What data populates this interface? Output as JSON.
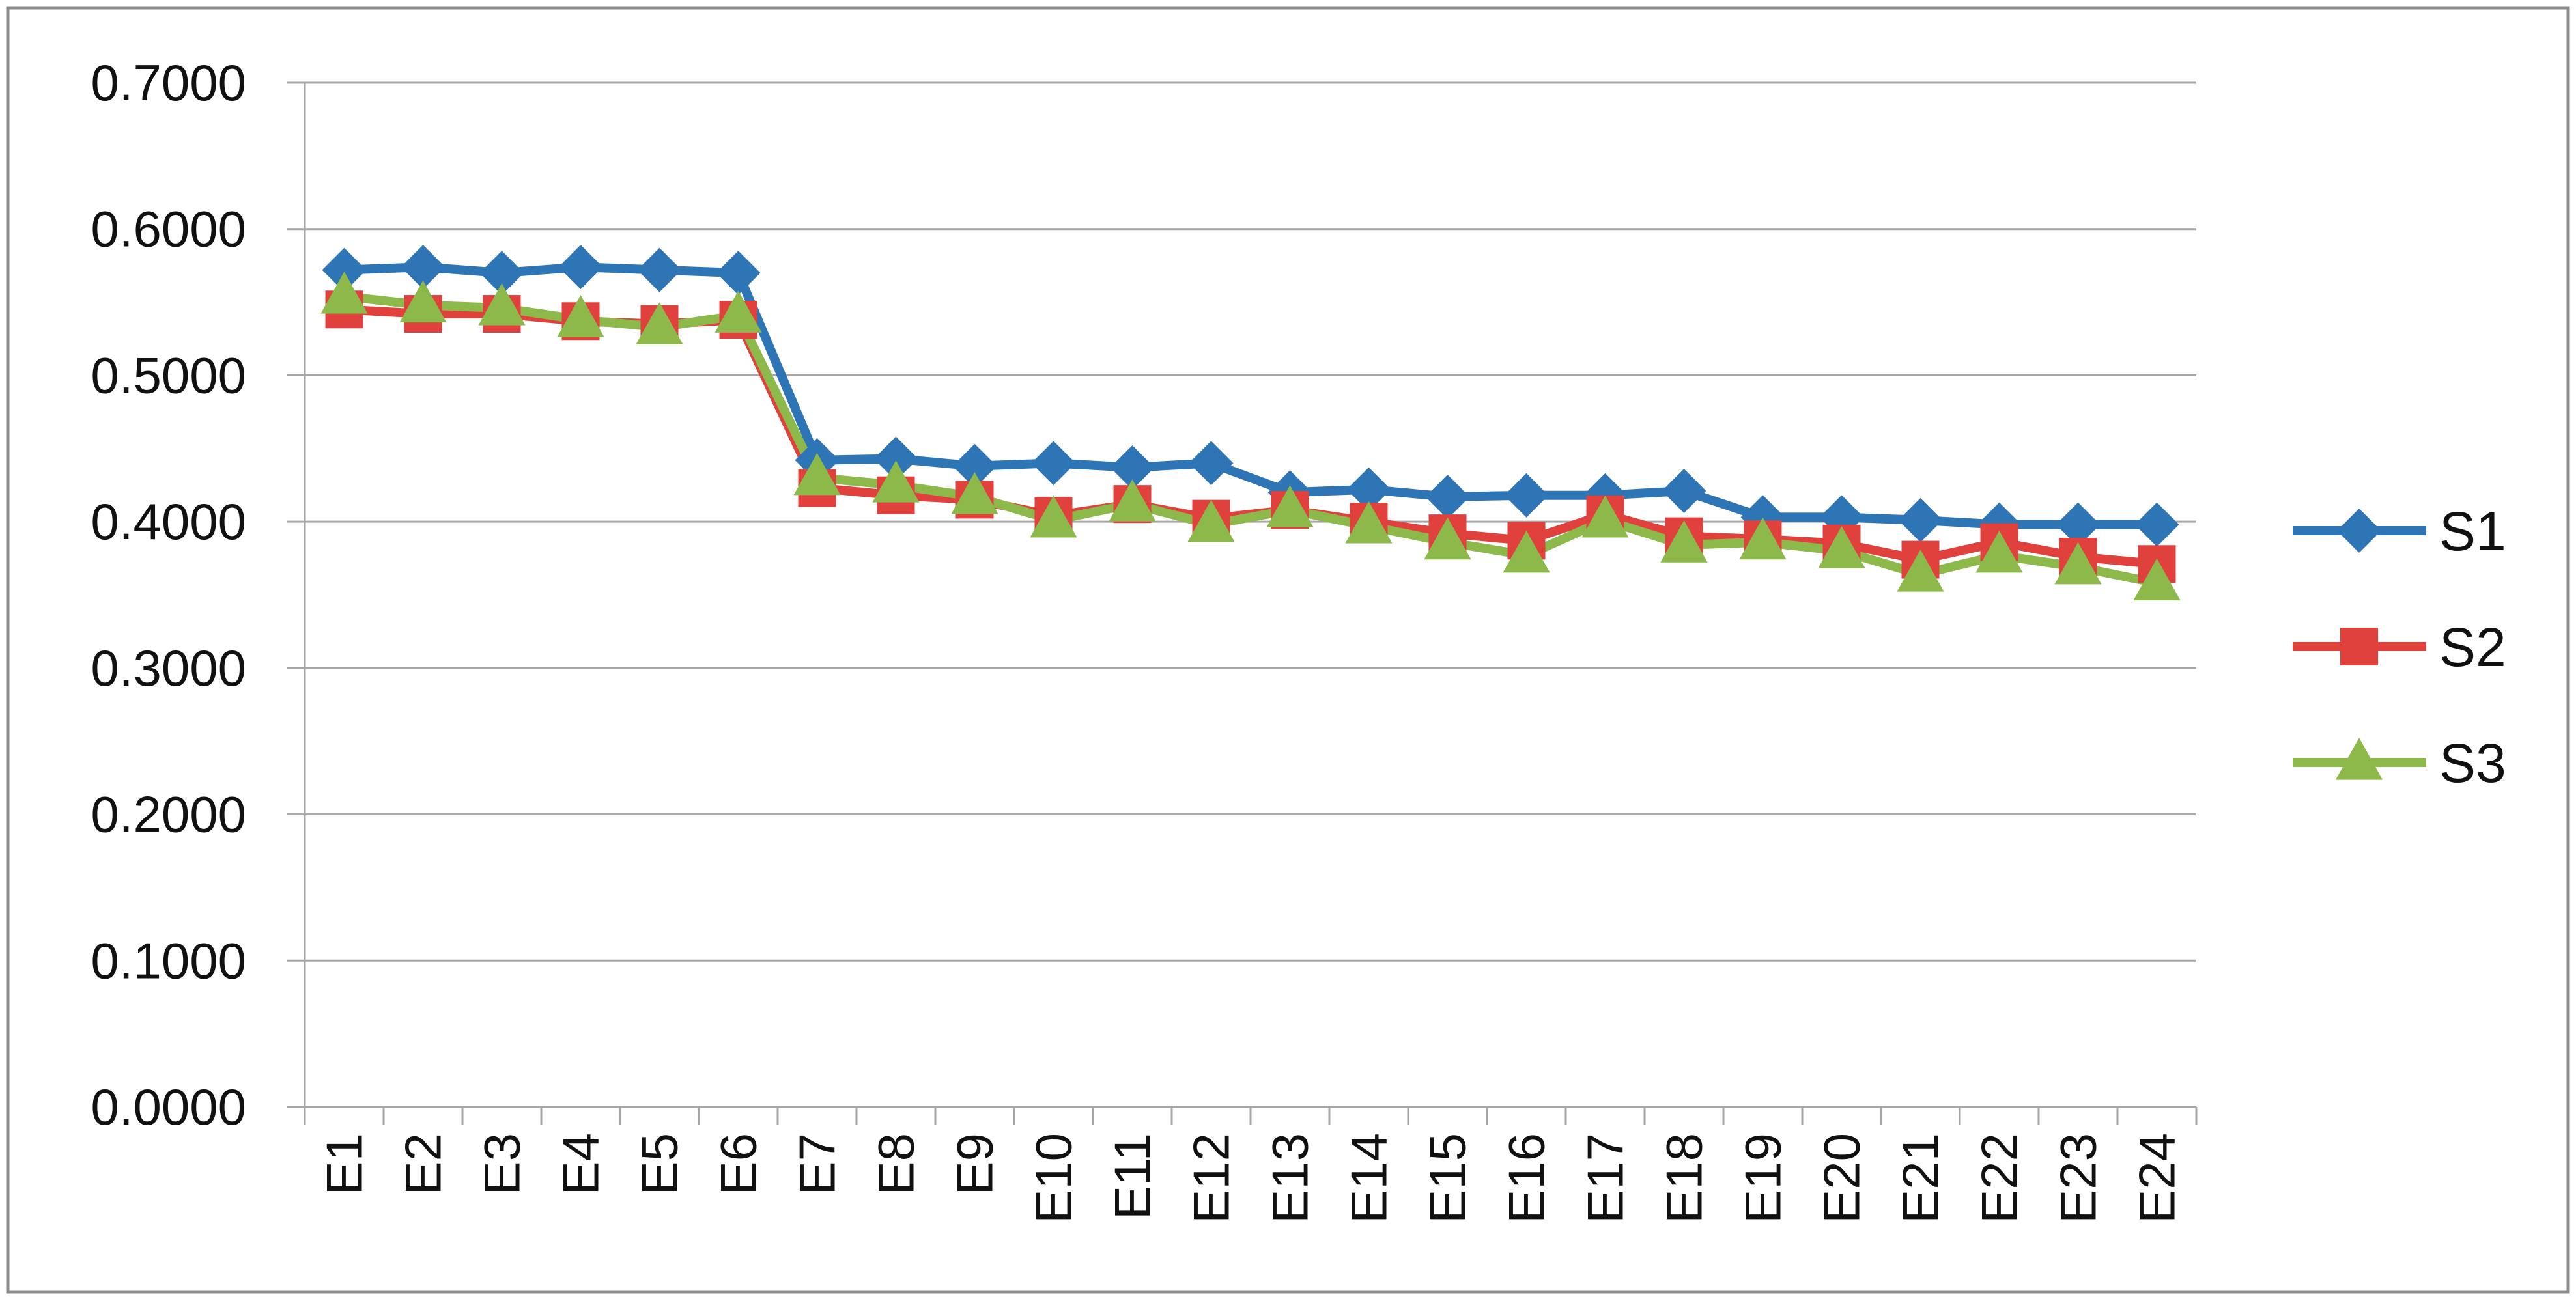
{
  "chart_data": {
    "type": "line",
    "title": "",
    "xlabel": "",
    "ylabel": "",
    "ylim": [
      0,
      0.7
    ],
    "ytick_labels": [
      "0.0000",
      "0.1000",
      "0.2000",
      "0.3000",
      "0.4000",
      "0.5000",
      "0.6000",
      "0.7000"
    ],
    "yticks": [
      0,
      0.1,
      0.2,
      0.3,
      0.4,
      0.5,
      0.6,
      0.7
    ],
    "grid": true,
    "legend_position": "right",
    "categories": [
      "E1",
      "E2",
      "E3",
      "E4",
      "E5",
      "E6",
      "E7",
      "E8",
      "E9",
      "E10",
      "E11",
      "E12",
      "E13",
      "E14",
      "E15",
      "E16",
      "E17",
      "E18",
      "E19",
      "E20",
      "E21",
      "E22",
      "E23",
      "E24"
    ],
    "series": [
      {
        "name": "S1",
        "color": "#2E75B6",
        "marker": "diamond",
        "values": [
          0.572,
          0.574,
          0.57,
          0.574,
          0.572,
          0.57,
          0.442,
          0.443,
          0.438,
          0.44,
          0.437,
          0.44,
          0.42,
          0.422,
          0.417,
          0.418,
          0.418,
          0.421,
          0.403,
          0.403,
          0.401,
          0.398,
          0.398,
          0.398
        ]
      },
      {
        "name": "S2",
        "color": "#E0413D",
        "marker": "square",
        "values": [
          0.545,
          0.542,
          0.542,
          0.537,
          0.535,
          0.538,
          0.423,
          0.418,
          0.415,
          0.404,
          0.412,
          0.402,
          0.408,
          0.4,
          0.392,
          0.387,
          0.405,
          0.39,
          0.388,
          0.385,
          0.374,
          0.386,
          0.376,
          0.371
        ]
      },
      {
        "name": "S3",
        "color": "#8DB84A",
        "marker": "triangle",
        "values": [
          0.554,
          0.548,
          0.546,
          0.538,
          0.533,
          0.541,
          0.43,
          0.425,
          0.417,
          0.401,
          0.412,
          0.398,
          0.408,
          0.397,
          0.386,
          0.377,
          0.401,
          0.384,
          0.386,
          0.38,
          0.364,
          0.377,
          0.369,
          0.358
        ]
      }
    ]
  }
}
